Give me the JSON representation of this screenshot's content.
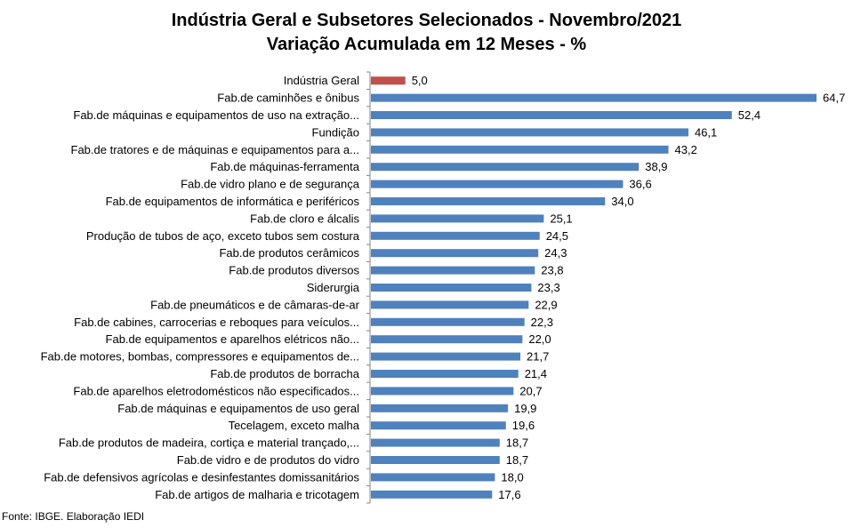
{
  "chart_data": {
    "type": "bar",
    "orientation": "horizontal",
    "title": "Indústria Geral e Subsetores Selecionados - Novembro/2021",
    "subtitle": "Variação Acumulada em 12 Meses - %",
    "categories": [
      "Indústria Geral",
      "Fab.de caminhões e ônibus",
      "Fab.de máquinas e equipamentos de uso na extração...",
      "Fundição",
      "Fab.de tratores e de máquinas e equipamentos para a...",
      "Fab.de máquinas-ferramenta",
      "Fab.de vidro plano e de segurança",
      "Fab.de equipamentos de informática e periféricos",
      "Fab.de cloro e álcalis",
      "Produção de tubos de aço, exceto tubos sem costura",
      "Fab.de produtos cerâmicos",
      "Fab.de produtos diversos",
      "Siderurgia",
      "Fab.de pneumáticos e de câmaras-de-ar",
      "Fab.de cabines, carrocerias e reboques para veículos...",
      "Fab.de equipamentos e aparelhos elétricos não...",
      "Fab.de motores, bombas, compressores e equipamentos de...",
      "Fab.de produtos de borracha",
      "Fab.de aparelhos eletrodomésticos não especificados...",
      "Fab.de máquinas e equipamentos de uso geral",
      "Tecelagem, exceto malha",
      "Fab.de produtos de madeira, cortiça e material trançado,...",
      "Fab.de vidro e de produtos do vidro",
      "Fab.de defensivos agrícolas e desinfestantes domissanitários",
      "Fab.de artigos de malharia e tricotagem"
    ],
    "values": [
      5.0,
      64.7,
      52.4,
      46.1,
      43.2,
      38.9,
      36.6,
      34.0,
      25.1,
      24.5,
      24.3,
      23.8,
      23.3,
      22.9,
      22.3,
      22.0,
      21.7,
      21.4,
      20.7,
      19.9,
      19.6,
      18.7,
      18.7,
      18.0,
      17.6
    ],
    "value_labels": [
      "5,0",
      "64,7",
      "52,4",
      "46,1",
      "43,2",
      "38,9",
      "36,6",
      "34,0",
      "25,1",
      "24,5",
      "24,3",
      "23,8",
      "23,3",
      "22,9",
      "22,3",
      "22,0",
      "21,7",
      "21,4",
      "20,7",
      "19,9",
      "19,6",
      "18,7",
      "18,7",
      "18,0",
      "17,6"
    ],
    "xlim": [
      0,
      70
    ],
    "grid": false,
    "legend": "none",
    "colors": {
      "highlight": "#c0504d",
      "default": "#4f81bd"
    },
    "highlight_index": 0
  },
  "source": "Fonte: IBGE. Elaboração IEDI"
}
